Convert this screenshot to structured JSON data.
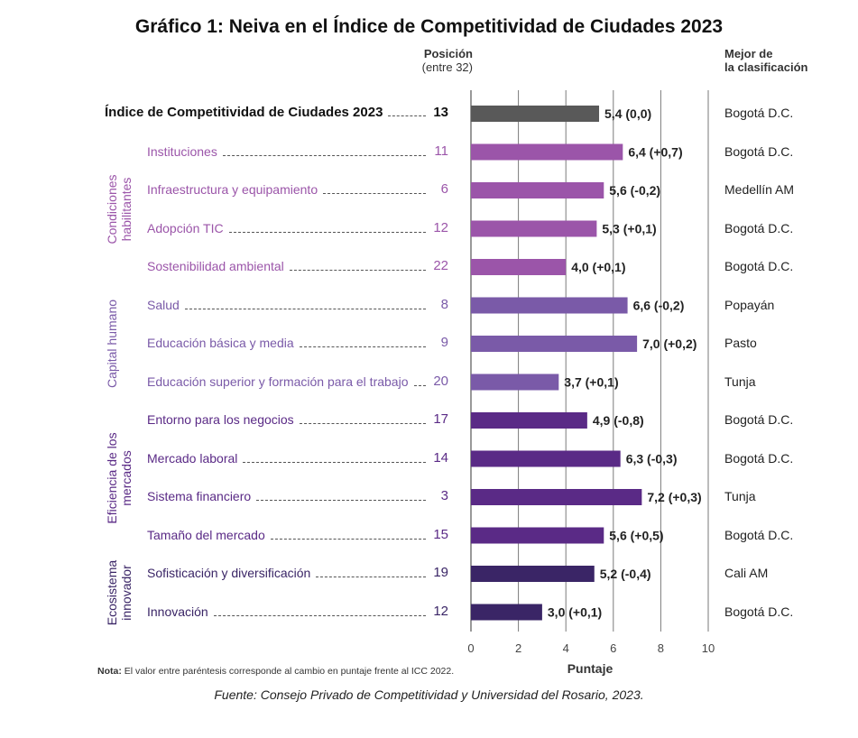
{
  "title": "Gráfico 1: Neiva en el Índice de Competitividad de Ciudades 2023",
  "position_header": {
    "line1": "Posición",
    "line2": "(entre 32)"
  },
  "best_header": {
    "line1": "Mejor de",
    "line2": "la clasificación"
  },
  "groups": [
    {
      "label": "Condiciones habilitantes",
      "color": "#9b55a9"
    },
    {
      "label": "Capital humano",
      "color": "#7a5aa8"
    },
    {
      "label": "Eficiencia de los mercados",
      "color": "#5a2a86"
    },
    {
      "label": "Ecosistema innovador",
      "color": "#3a2566"
    }
  ],
  "note": {
    "prefix": "Nota:",
    "text": " El valor entre paréntesis corresponde al cambio en puntaje frente al ICC 2022."
  },
  "source": "Fuente: Consejo Privado de Competitividad y Universidad del Rosario, 2023.",
  "chart_data": {
    "type": "bar",
    "orientation": "horizontal",
    "xlabel": "Puntaje",
    "xlim": [
      0,
      10
    ],
    "xticks": [
      "0",
      "2",
      "4",
      "6",
      "8",
      "10"
    ],
    "grid": true,
    "rows": [
      {
        "label": "Índice de Competitividad de Ciudades 2023",
        "position": "13",
        "value": 5.4,
        "value_label": "5,4",
        "change": "(0,0)",
        "best": "Bogotá D.C.",
        "color": "#595959",
        "main": true
      },
      {
        "label": "Instituciones",
        "position": "11",
        "value": 6.4,
        "value_label": "6,4",
        "change": "(+0,7)",
        "best": "Bogotá D.C.",
        "color": "#9b55a9"
      },
      {
        "label": "Infraestructura y equipamiento",
        "position": "6",
        "value": 5.6,
        "value_label": "5,6",
        "change": "(-0,2)",
        "best": "Medellín AM",
        "color": "#9b55a9"
      },
      {
        "label": "Adopción TIC",
        "position": "12",
        "value": 5.3,
        "value_label": "5,3",
        "change": "(+0,1)",
        "best": "Bogotá D.C.",
        "color": "#9b55a9"
      },
      {
        "label": "Sostenibilidad ambiental",
        "position": "22",
        "value": 4.0,
        "value_label": "4,0",
        "change": "(+0,1)",
        "best": "Bogotá D.C.",
        "color": "#9b55a9"
      },
      {
        "label": "Salud",
        "position": "8",
        "value": 6.6,
        "value_label": "6,6",
        "change": "(-0,2)",
        "best": "Popayán",
        "color": "#7a5aa8"
      },
      {
        "label": "Educación básica y media",
        "position": "9",
        "value": 7.0,
        "value_label": "7,0",
        "change": "(+0,2)",
        "best": "Pasto",
        "color": "#7a5aa8"
      },
      {
        "label": "Educación superior y formación para el trabajo",
        "position": "20",
        "value": 3.7,
        "value_label": "3,7",
        "change": "(+0,1)",
        "best": "Tunja",
        "color": "#7a5aa8"
      },
      {
        "label": "Entorno para los negocios",
        "position": "17",
        "value": 4.9,
        "value_label": "4,9",
        "change": "(-0,8)",
        "best": "Bogotá D.C.",
        "color": "#5a2a86"
      },
      {
        "label": "Mercado laboral",
        "position": "14",
        "value": 6.3,
        "value_label": "6,3",
        "change": "(-0,3)",
        "best": "Bogotá D.C.",
        "color": "#5a2a86"
      },
      {
        "label": "Sistema financiero",
        "position": "3",
        "value": 7.2,
        "value_label": "7,2",
        "change": "(+0,3)",
        "best": "Tunja",
        "color": "#5a2a86"
      },
      {
        "label": "Tamaño del mercado",
        "position": "15",
        "value": 5.6,
        "value_label": "5,6",
        "change": "(+0,5)",
        "best": "Bogotá D.C.",
        "color": "#5a2a86"
      },
      {
        "label": "Sofisticación y diversificación",
        "position": "19",
        "value": 5.2,
        "value_label": "5,2",
        "change": "(-0,4)",
        "best": "Cali AM",
        "color": "#3a2566"
      },
      {
        "label": "Innovación",
        "position": "12",
        "value": 3.0,
        "value_label": "3,0",
        "change": "(+0,1)",
        "best": "Bogotá D.C.",
        "color": "#3a2566"
      }
    ]
  }
}
